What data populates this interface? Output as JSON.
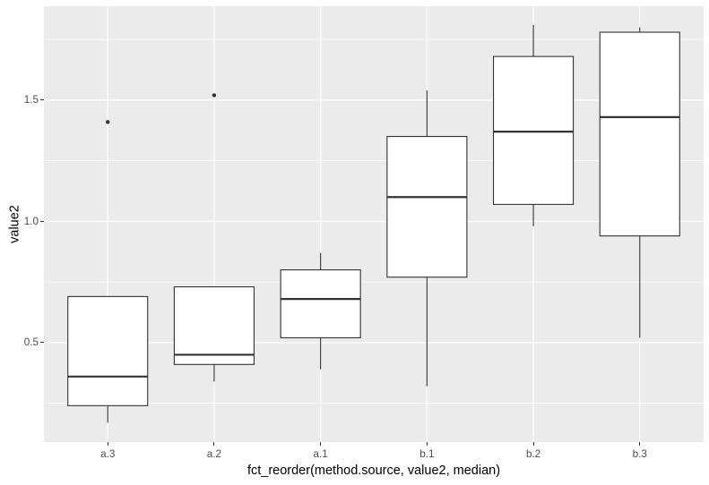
{
  "chart_data": {
    "type": "boxplot",
    "title": "",
    "xlabel": "fct_reorder(method.source, value2, median)",
    "ylabel": "value2",
    "categories": [
      "a.3",
      "a.2",
      "a.1",
      "b.1",
      "b.2",
      "b.3"
    ],
    "y_ticks": [
      0.5,
      1.0,
      1.5
    ],
    "y_minor_ticks": [
      0.25,
      0.75,
      1.25,
      1.75
    ],
    "ylim": [
      0.09,
      1.887
    ],
    "grid": true,
    "legend": "none",
    "boxes": [
      {
        "category": "a.3",
        "whisker_low": 0.17,
        "q1": 0.24,
        "median": 0.36,
        "q3": 0.69,
        "whisker_high": 0.69,
        "outliers": [
          1.41
        ]
      },
      {
        "category": "a.2",
        "whisker_low": 0.34,
        "q1": 0.41,
        "median": 0.45,
        "q3": 0.73,
        "whisker_high": 0.73,
        "outliers": [
          1.52
        ]
      },
      {
        "category": "a.1",
        "whisker_low": 0.39,
        "q1": 0.52,
        "median": 0.68,
        "q3": 0.8,
        "whisker_high": 0.87,
        "outliers": []
      },
      {
        "category": "b.1",
        "whisker_low": 0.32,
        "q1": 0.77,
        "median": 1.1,
        "q3": 1.35,
        "whisker_high": 1.54,
        "outliers": []
      },
      {
        "category": "b.2",
        "whisker_low": 0.98,
        "q1": 1.07,
        "median": 1.37,
        "q3": 1.68,
        "whisker_high": 1.81,
        "outliers": []
      },
      {
        "category": "b.3",
        "whisker_low": 0.52,
        "q1": 0.94,
        "median": 1.43,
        "q3": 1.78,
        "whisker_high": 1.8,
        "outliers": []
      }
    ],
    "colors": {
      "panel_bg": "#ebebeb",
      "grid_major": "#ffffff",
      "grid_minor": "#ffffff",
      "box_stroke": "#333333",
      "box_fill": "#ffffff",
      "outlier": "#333333",
      "tick_label": "#4d4d4d",
      "axis_title": "#000000",
      "tick_mark": "#333333"
    }
  }
}
